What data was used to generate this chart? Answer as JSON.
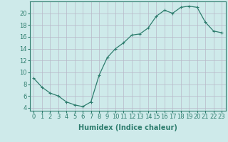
{
  "x": [
    0,
    1,
    2,
    3,
    4,
    5,
    6,
    7,
    8,
    9,
    10,
    11,
    12,
    13,
    14,
    15,
    16,
    17,
    18,
    19,
    20,
    21,
    22,
    23
  ],
  "y": [
    9.0,
    7.5,
    6.5,
    6.0,
    5.0,
    4.5,
    4.2,
    5.0,
    9.5,
    12.5,
    14.0,
    15.0,
    16.3,
    16.5,
    17.5,
    19.5,
    20.5,
    20.0,
    21.0,
    21.2,
    21.0,
    18.5,
    17.0,
    16.7
  ],
  "line_color": "#2e7d6e",
  "marker": "+",
  "bg_color": "#ceeaea",
  "grid_color": "#b8b8c8",
  "xlabel": "Humidex (Indice chaleur)",
  "ylim": [
    3.5,
    22
  ],
  "yticks": [
    4,
    6,
    8,
    10,
    12,
    14,
    16,
    18,
    20
  ],
  "xlim": [
    -0.5,
    23.5
  ],
  "label_fontsize": 7,
  "tick_fontsize": 6
}
